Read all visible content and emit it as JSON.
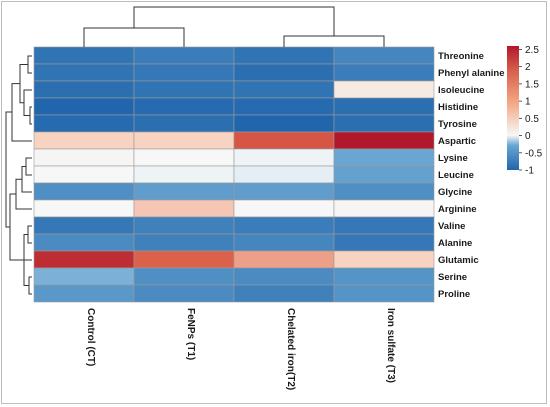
{
  "chart_data": {
    "type": "heatmap",
    "title": "",
    "xlabel": "",
    "ylabel": "",
    "columns": [
      "Control (CT)",
      "FeNPs (T1)",
      "Chelated iron(T2)",
      "Iron sulfate (T3)"
    ],
    "rows": [
      "Threonine",
      "Phenyl alanine",
      "Isoleucine",
      "Histidine",
      "Tyrosine",
      "Aspartic",
      "Lysine",
      "Leucine",
      "Glycine",
      "Arginine",
      "Valine",
      "Alanine",
      "Glutamic",
      "Serine",
      "Proline"
    ],
    "values": [
      [
        -0.85,
        -0.75,
        -0.85,
        -0.65
      ],
      [
        -0.85,
        -0.8,
        -0.9,
        -0.75
      ],
      [
        -0.9,
        -0.85,
        -0.85,
        0.5
      ],
      [
        -1.0,
        -0.95,
        -0.95,
        -0.9
      ],
      [
        -0.95,
        -0.9,
        -1.0,
        -0.9
      ],
      [
        1.0,
        1.0,
        2.0,
        2.6
      ],
      [
        0.25,
        0.2,
        0.15,
        -0.3
      ],
      [
        0.2,
        0.15,
        0.1,
        -0.35
      ],
      [
        -0.55,
        -0.4,
        -0.4,
        -0.55
      ],
      [
        0.2,
        1.1,
        0.2,
        0.25
      ],
      [
        -0.8,
        -0.7,
        -0.75,
        -0.8
      ],
      [
        -0.6,
        -0.7,
        -0.65,
        -0.8
      ],
      [
        2.4,
        1.9,
        1.4,
        1.0
      ],
      [
        -0.25,
        -0.55,
        -0.6,
        -0.5
      ],
      [
        -0.45,
        -0.6,
        -0.7,
        -0.5
      ]
    ],
    "color_scale": {
      "range": [
        -1,
        2.6
      ],
      "ticks": [
        "2.5",
        "2",
        "1.5",
        "1",
        "0.5",
        "0",
        "-0.5",
        "-1"
      ],
      "tick_values": [
        2.5,
        2,
        1.5,
        1,
        0.5,
        0,
        -0.5,
        -1
      ],
      "low_color": "#2166ac",
      "mid_color": "#f7f7f7",
      "high_color": "#b2182b",
      "legend_placement": "right"
    },
    "dendrograms": {
      "columns": "top",
      "rows": "left"
    },
    "grid": true
  }
}
